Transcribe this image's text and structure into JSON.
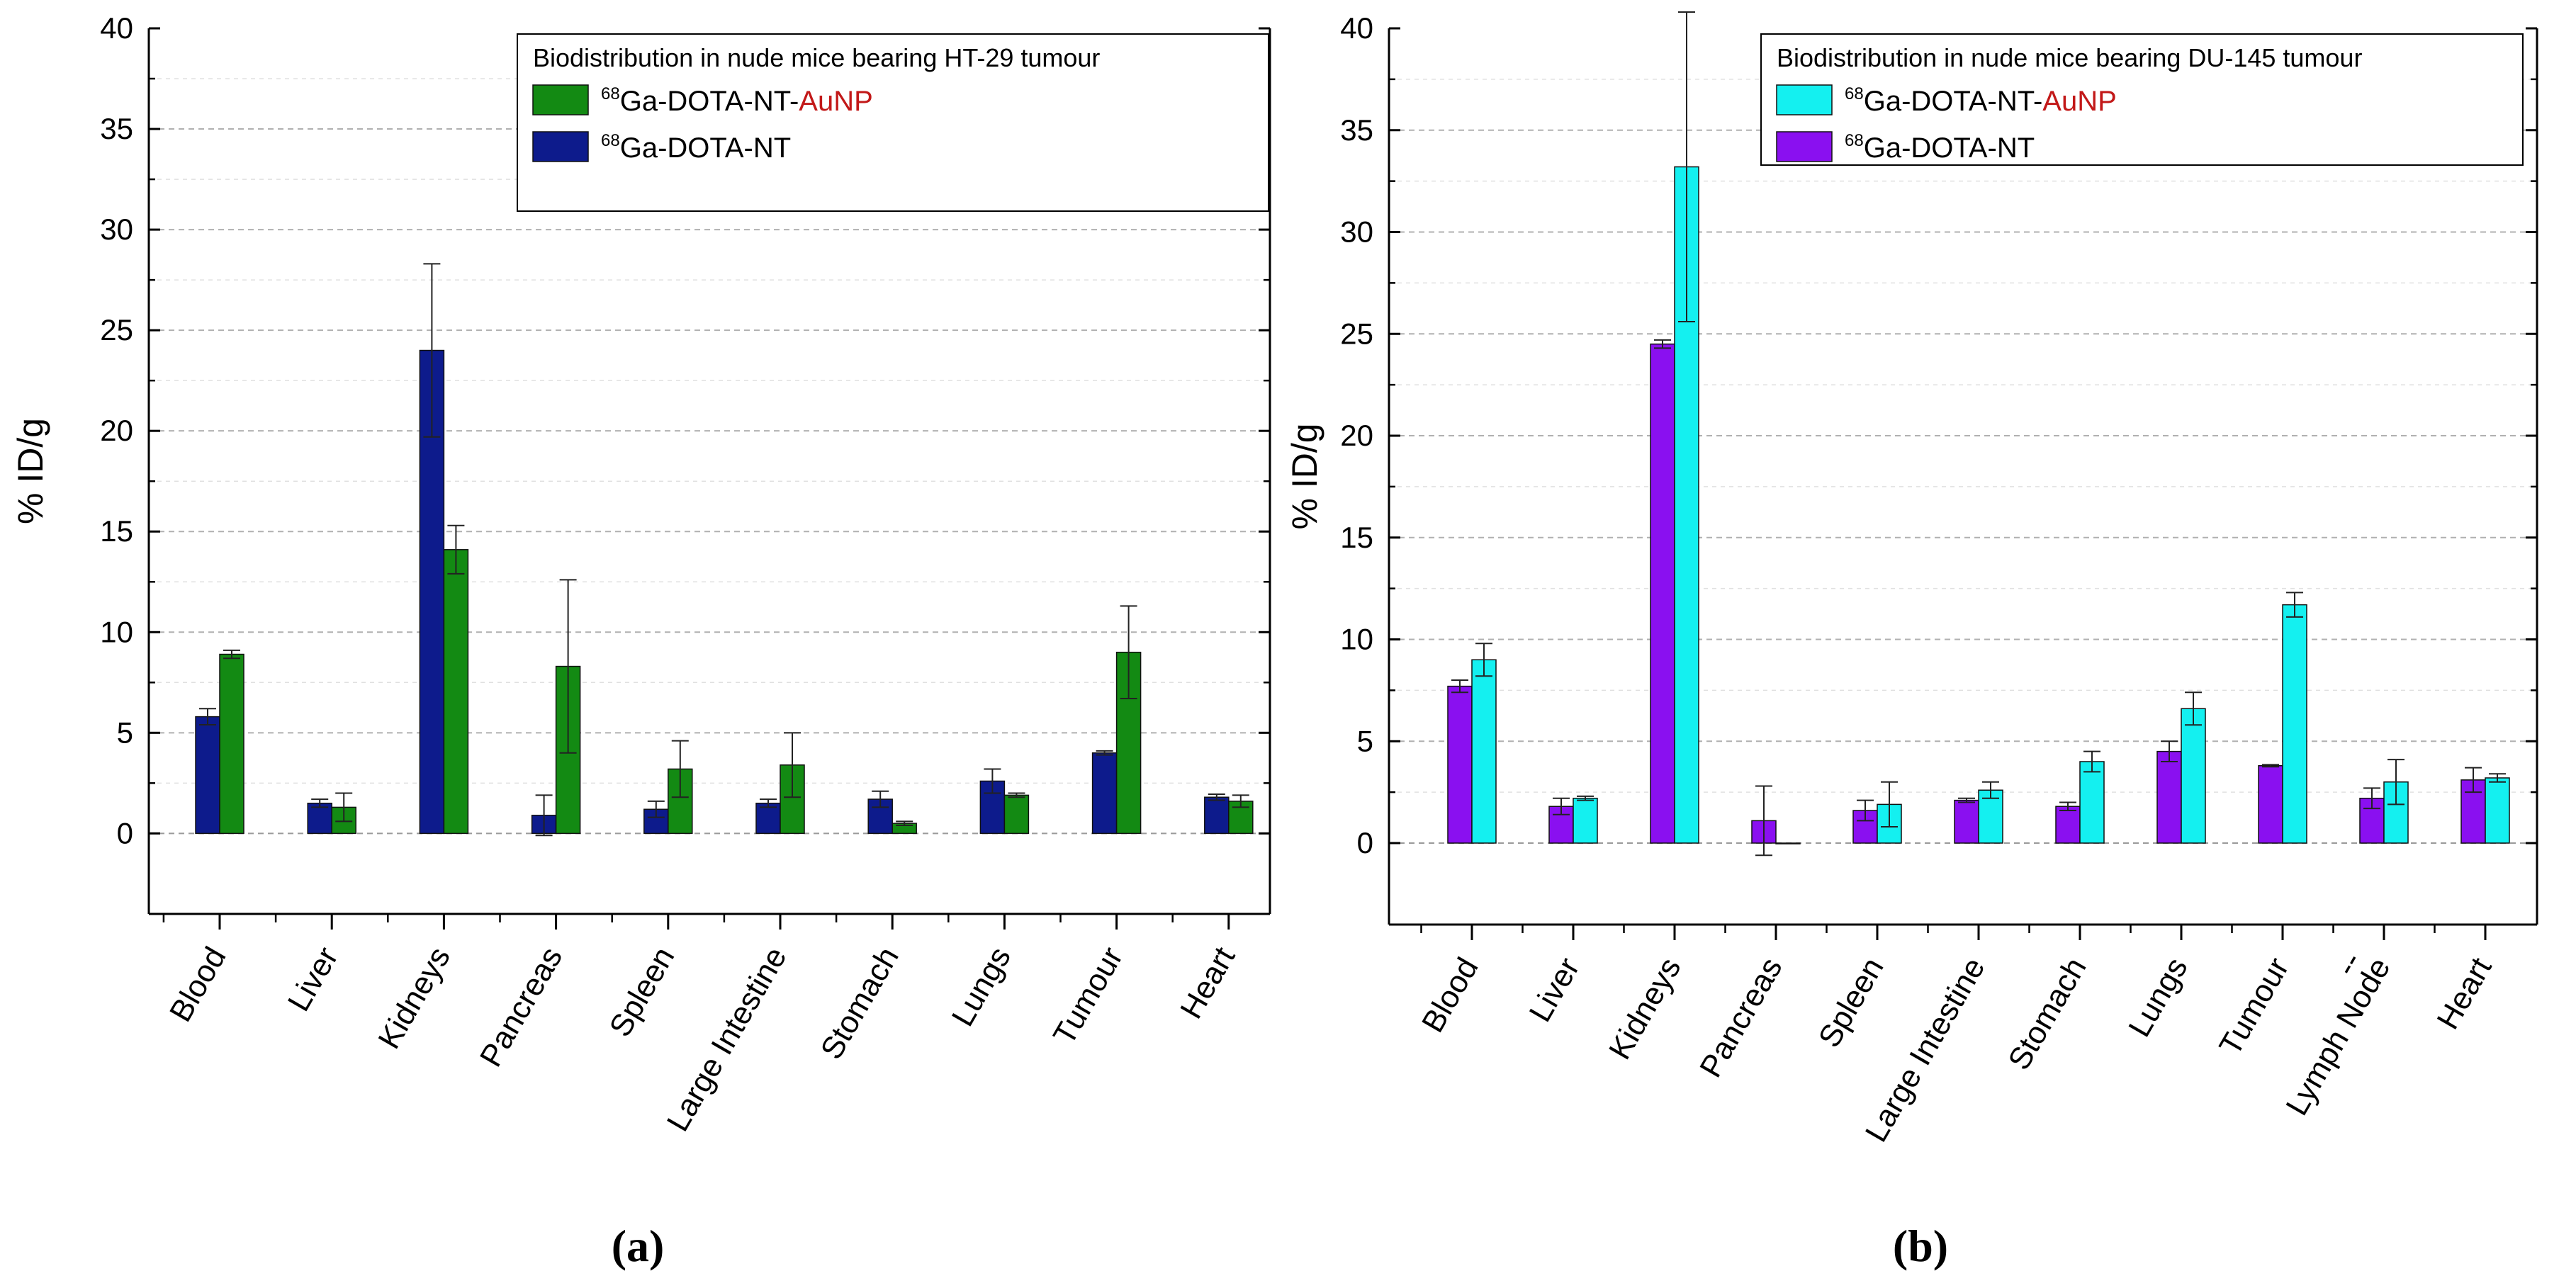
{
  "chart_data": [
    {
      "type": "bar",
      "title": "Biodistribution in nude mice bearing HT-29 tumour",
      "panel_label": "(a)",
      "ylabel": "% ID/g",
      "xlabel": "",
      "ylim": [
        -4,
        40
      ],
      "yticks": [
        0,
        5,
        10,
        15,
        20,
        25,
        30,
        35,
        40
      ],
      "grid": "horizontal dashed",
      "legend_position": "top-right",
      "categories": [
        "Blood",
        "Liver",
        "Kidneys",
        "Pancreas",
        "Spleen",
        "Large Intestine",
        "Stomach",
        "Lungs",
        "Tumour",
        "Heart"
      ],
      "series": [
        {
          "name": "Ga-DOTA-NT",
          "legend_sup": "68",
          "legend_base": "Ga-DOTA-NT",
          "legend_suffix": "",
          "color": "#0d1b8c",
          "values": [
            5.8,
            1.5,
            24.0,
            0.9,
            1.2,
            1.5,
            1.7,
            2.6,
            4.0,
            1.8
          ],
          "errors": [
            0.4,
            0.2,
            4.3,
            1.0,
            0.4,
            0.2,
            0.4,
            0.6,
            0.1,
            0.15
          ]
        },
        {
          "name": "Ga-DOTA-NT-AuNP",
          "legend_sup": "68",
          "legend_base": "Ga-DOTA-NT-",
          "legend_suffix": "AuNP",
          "color": "#138a13",
          "values": [
            8.9,
            1.3,
            14.1,
            8.3,
            3.2,
            3.4,
            0.5,
            1.9,
            9.0,
            1.6
          ],
          "errors": [
            0.2,
            0.7,
            1.2,
            4.3,
            1.4,
            1.6,
            0.1,
            0.1,
            2.3,
            0.3
          ]
        }
      ]
    },
    {
      "type": "bar",
      "title": "Biodistribution in nude mice bearing DU-145 tumour",
      "panel_label": "(b)",
      "ylabel": "% ID/g",
      "xlabel": "",
      "ylim": [
        -4,
        40
      ],
      "yticks": [
        0,
        5,
        10,
        15,
        20,
        25,
        30,
        35,
        40
      ],
      "grid": "horizontal dashed",
      "legend_position": "top-right",
      "categories": [
        "Blood",
        "Liver",
        "Kidneys",
        "Pancreas",
        "Spleen",
        "Large Intestine",
        "Stomach",
        "Lungs",
        "Tumour",
        "Lymph Node",
        "Heart"
      ],
      "extra_tick_label": "--",
      "series": [
        {
          "name": "Ga-DOTA-NT",
          "legend_sup": "68",
          "legend_base": "Ga-DOTA-NT",
          "legend_suffix": "",
          "color": "#8a10f0",
          "values": [
            7.7,
            1.8,
            24.5,
            1.1,
            1.6,
            2.1,
            1.8,
            4.5,
            3.8,
            2.2,
            3.1
          ],
          "errors": [
            0.3,
            0.4,
            0.2,
            1.7,
            0.5,
            0.1,
            0.2,
            0.5,
            0.05,
            0.5,
            0.6
          ]
        },
        {
          "name": "Ga-DOTA-NT-AuNP",
          "legend_sup": "68",
          "legend_base": "Ga-DOTA-NT-",
          "legend_suffix": "AuNP",
          "color": "#14f0f0",
          "values": [
            9.0,
            2.2,
            33.2,
            0.0,
            1.9,
            2.6,
            4.0,
            6.6,
            11.7,
            3.0,
            3.2
          ],
          "errors": [
            0.8,
            0.1,
            7.6,
            0.0,
            1.1,
            0.4,
            0.5,
            0.8,
            0.6,
            1.1,
            0.2
          ]
        }
      ]
    }
  ]
}
